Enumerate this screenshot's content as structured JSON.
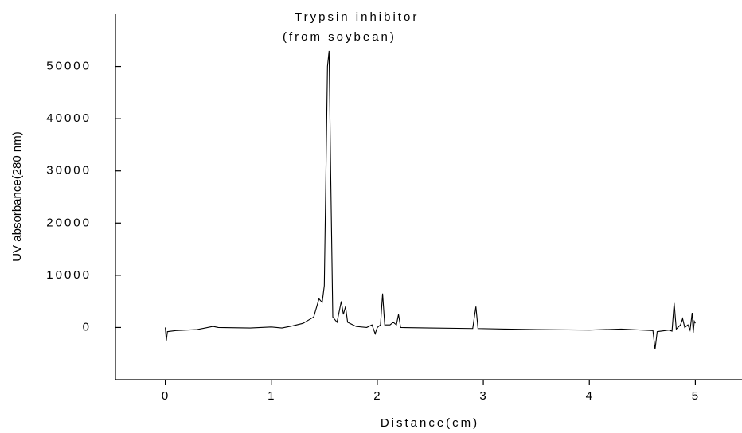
{
  "chart_data": {
    "type": "line",
    "annotations": [
      "Trypsin inhibitor",
      "(from soybean)"
    ],
    "xlabel": "Distance(cm)",
    "ylabel": "UV absorbance(280 nm)",
    "xlim": [
      -0.47,
      5.44
    ],
    "ylim": [
      -10000,
      60000
    ],
    "xticks": [
      0,
      1,
      2,
      3,
      4,
      5
    ],
    "yticks": [
      0,
      10000,
      20000,
      30000,
      40000,
      50000
    ],
    "grid": false,
    "series": [
      {
        "color": "#000000",
        "x": [
          0,
          0.01,
          0.02,
          0.1,
          0.3,
          0.45,
          0.5,
          0.8,
          1.0,
          1.1,
          1.2,
          1.3,
          1.4,
          1.45,
          1.48,
          1.5,
          1.53,
          1.545,
          1.56,
          1.58,
          1.62,
          1.66,
          1.68,
          1.7,
          1.72,
          1.8,
          1.9,
          1.95,
          1.98,
          2.0,
          2.03,
          2.05,
          2.07,
          2.12,
          2.15,
          2.18,
          2.2,
          2.22,
          2.5,
          2.9,
          2.93,
          2.95,
          3.2,
          3.5,
          4.0,
          4.3,
          4.6,
          4.62,
          4.64,
          4.75,
          4.78,
          4.8,
          4.82,
          4.86,
          4.88,
          4.9,
          4.93,
          4.95,
          4.97,
          4.98,
          4.99,
          5.0
        ],
        "values": [
          0,
          -2500,
          -800,
          -600,
          -400,
          200,
          0,
          -100,
          100,
          -100,
          300,
          800,
          2000,
          5500,
          4800,
          8000,
          50000,
          53000,
          30000,
          2000,
          1000,
          5000,
          2500,
          4000,
          1000,
          200,
          0,
          500,
          -1200,
          0,
          500,
          6500,
          500,
          500,
          1000,
          500,
          2500,
          0,
          -100,
          -200,
          4000,
          -200,
          -300,
          -400,
          -500,
          -300,
          -600,
          -4200,
          -800,
          -500,
          -700,
          4700,
          -300,
          500,
          1700,
          0,
          500,
          -500,
          2800,
          -1000,
          1200,
          800
        ]
      }
    ]
  }
}
